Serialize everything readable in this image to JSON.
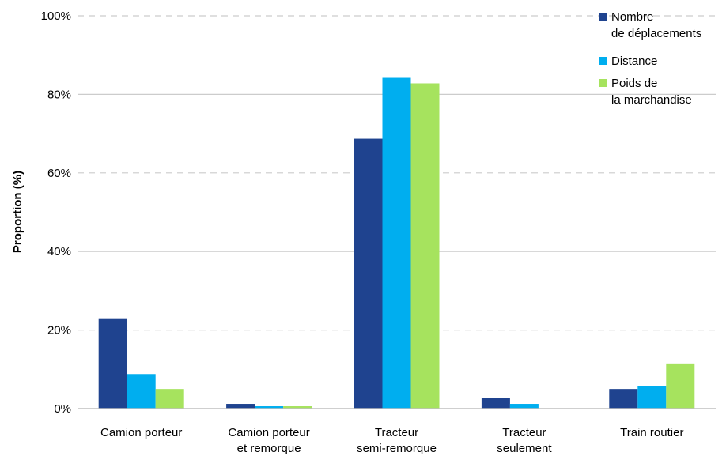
{
  "chart_data": {
    "type": "bar",
    "categories": [
      [
        "Camion porteur"
      ],
      [
        "Camion porteur",
        "et remorque"
      ],
      [
        "Tracteur",
        "semi-remorque"
      ],
      [
        "Tracteur",
        "seulement"
      ],
      [
        "Train routier"
      ]
    ],
    "series": [
      {
        "name": [
          "Nombre",
          "de déplacements"
        ],
        "color": "#1f438f",
        "values": [
          22.8,
          1.2,
          68.7,
          2.8,
          5.0
        ]
      },
      {
        "name": [
          "Distance"
        ],
        "color": "#00aeef",
        "values": [
          8.8,
          0.6,
          84.2,
          1.2,
          5.7
        ]
      },
      {
        "name": [
          "Poids de",
          "la marchandise"
        ],
        "color": "#a6e35e",
        "values": [
          5.0,
          0.6,
          82.8,
          0.1,
          11.5
        ]
      }
    ],
    "ylabel": "Proportion (%)",
    "ylim": [
      0,
      100
    ],
    "yticks": [
      "0%",
      "20%",
      "40%",
      "60%",
      "80%",
      "100%"
    ],
    "grid": true,
    "legend_position": "top-right"
  }
}
